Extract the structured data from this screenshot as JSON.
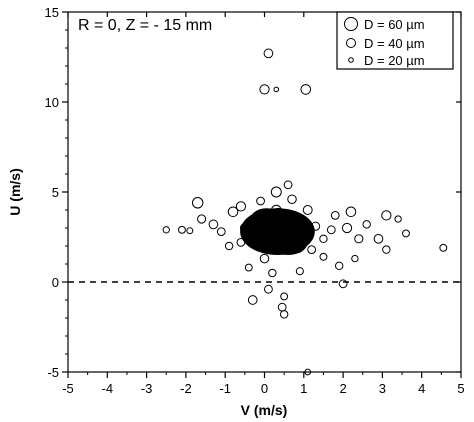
{
  "chart_data": {
    "type": "scatter",
    "title": "",
    "annotation": "R = 0, Z = - 15 mm",
    "xlabel": "V (m/s)",
    "ylabel": "U (m/s)",
    "xlim": [
      -5,
      5
    ],
    "ylim": [
      -5,
      15
    ],
    "x_ticks": [
      "-5",
      "-4",
      "-3",
      "-2",
      "-1",
      "0",
      "1",
      "2",
      "3",
      "4",
      "5"
    ],
    "y_ticks": [
      "-5",
      "0",
      "5",
      "10",
      "15"
    ],
    "grid": false,
    "reference_line": {
      "y": 0,
      "style": "dashed"
    },
    "legend": {
      "position": "top-right",
      "entries": [
        {
          "label": "D = 60 µm",
          "diameter_um": 60
        },
        {
          "label": "D = 40 µm",
          "diameter_um": 40
        },
        {
          "label": "D = 20 µm",
          "diameter_um": 20
        }
      ]
    },
    "marker": "open circle, size proportional to droplet diameter D",
    "points": [
      {
        "x": 0.1,
        "y": 12.7,
        "d": 35
      },
      {
        "x": 0.0,
        "y": 10.7,
        "d": 38
      },
      {
        "x": 0.3,
        "y": 10.7,
        "d": 12
      },
      {
        "x": 1.05,
        "y": 10.7,
        "d": 40
      },
      {
        "x": -2.5,
        "y": 2.9,
        "d": 22
      },
      {
        "x": -2.1,
        "y": 2.9,
        "d": 25
      },
      {
        "x": -1.9,
        "y": 2.85,
        "d": 20
      },
      {
        "x": -1.7,
        "y": 4.4,
        "d": 45
      },
      {
        "x": -1.6,
        "y": 3.5,
        "d": 32
      },
      {
        "x": -1.3,
        "y": 3.2,
        "d": 35
      },
      {
        "x": -1.1,
        "y": 2.8,
        "d": 30
      },
      {
        "x": -0.9,
        "y": 2.0,
        "d": 28
      },
      {
        "x": -0.8,
        "y": 3.9,
        "d": 40
      },
      {
        "x": -0.6,
        "y": 4.2,
        "d": 38
      },
      {
        "x": -0.4,
        "y": 0.8,
        "d": 25
      },
      {
        "x": -0.3,
        "y": -1.0,
        "d": 35
      },
      {
        "x": 0.1,
        "y": -0.4,
        "d": 30
      },
      {
        "x": 0.5,
        "y": -0.8,
        "d": 25
      },
      {
        "x": 0.45,
        "y": -1.4,
        "d": 30
      },
      {
        "x": 0.5,
        "y": -1.8,
        "d": 28
      },
      {
        "x": 1.1,
        "y": -5.0,
        "d": 18
      },
      {
        "x": 0.3,
        "y": 5.0,
        "d": 42
      },
      {
        "x": 0.6,
        "y": 5.4,
        "d": 30
      },
      {
        "x": 1.8,
        "y": 3.7,
        "d": 30
      },
      {
        "x": 2.1,
        "y": 3.0,
        "d": 38
      },
      {
        "x": 2.2,
        "y": 3.9,
        "d": 40
      },
      {
        "x": 2.4,
        "y": 2.4,
        "d": 32
      },
      {
        "x": 2.6,
        "y": 3.2,
        "d": 28
      },
      {
        "x": 2.9,
        "y": 2.4,
        "d": 35
      },
      {
        "x": 3.1,
        "y": 3.7,
        "d": 38
      },
      {
        "x": 3.1,
        "y": 1.8,
        "d": 28
      },
      {
        "x": 3.4,
        "y": 3.5,
        "d": 22
      },
      {
        "x": 3.6,
        "y": 2.7,
        "d": 25
      },
      {
        "x": 4.55,
        "y": 1.9,
        "d": 25
      },
      {
        "x": 2.0,
        "y": -0.1,
        "d": 30
      },
      {
        "x": 1.9,
        "y": 0.9,
        "d": 28
      },
      {
        "x": 1.5,
        "y": 1.4,
        "d": 25
      },
      {
        "x": 2.3,
        "y": 1.3,
        "d": 22
      },
      {
        "x": -0.5,
        "y": 3.0,
        "d": 36
      },
      {
        "x": -0.2,
        "y": 3.4,
        "d": 30
      },
      {
        "x": 1.3,
        "y": 3.1,
        "d": 32
      },
      {
        "x": 1.5,
        "y": 2.4,
        "d": 28
      },
      {
        "x": 1.7,
        "y": 2.9,
        "d": 30
      },
      {
        "x": 1.2,
        "y": 1.8,
        "d": 30
      },
      {
        "x": -0.6,
        "y": 2.2,
        "d": 30
      },
      {
        "x": 0.9,
        "y": 0.6,
        "d": 26
      },
      {
        "x": 0.2,
        "y": 0.5,
        "d": 28
      },
      {
        "x": 0.7,
        "y": 4.6,
        "d": 34
      },
      {
        "x": -0.1,
        "y": 4.5,
        "d": 30
      },
      {
        "x": 0.3,
        "y": 4.0,
        "d": 40
      },
      {
        "x": 1.1,
        "y": 4.0,
        "d": 36
      },
      {
        "x": 0.0,
        "y": 1.3,
        "d": 34
      }
    ],
    "dense_cluster": {
      "x_range": [
        -0.8,
        1.6
      ],
      "y_range": [
        0.0,
        5.0
      ],
      "center": [
        0.3,
        2.8
      ]
    }
  }
}
